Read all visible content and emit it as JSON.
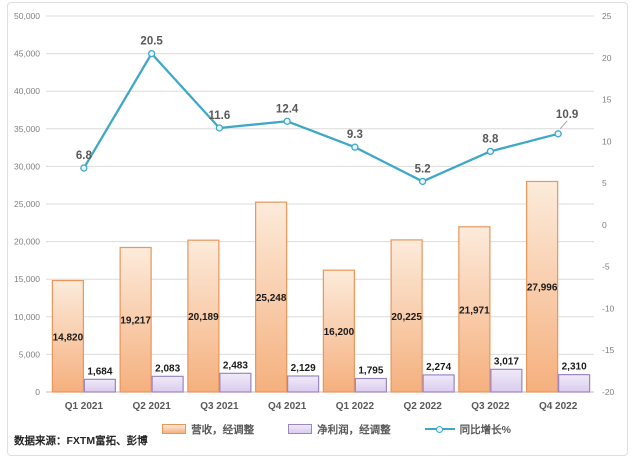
{
  "chart_data": {
    "type": "combo",
    "categories": [
      "Q1 2021",
      "Q2 2021",
      "Q3 2021",
      "Q4 2021",
      "Q1 2022",
      "Q2 2022",
      "Q3 2022",
      "Q4 2022"
    ],
    "series": [
      {
        "name": "营收，经调整",
        "type": "bar",
        "axis": "left",
        "values": [
          14820,
          19217,
          20189,
          25248,
          16200,
          20225,
          21971,
          27996
        ],
        "labels": [
          "14,820",
          "19,217",
          "20,189",
          "25,248",
          "16,200",
          "20,225",
          "21,971",
          "27,996"
        ],
        "color_top": "#FCEBDB",
        "color_bottom": "#F5B07E",
        "border": "#E9965B"
      },
      {
        "name": "净利润，经调整",
        "type": "bar",
        "axis": "left",
        "values": [
          1684,
          2083,
          2483,
          2129,
          1795,
          2274,
          3017,
          2310
        ],
        "labels": [
          "1,684",
          "2,083",
          "2,483",
          "2,129",
          "1,795",
          "2,274",
          "3,017",
          "2,310"
        ],
        "color_top": "#F0EAF8",
        "color_bottom": "#DACCEE",
        "border": "#9B85C3"
      },
      {
        "name": "同比增长%",
        "type": "line",
        "axis": "right",
        "values": [
          6.8,
          20.5,
          11.6,
          12.4,
          9.3,
          5.2,
          8.8,
          10.9
        ],
        "labels": [
          "6.8",
          "20.5",
          "11.6",
          "12.4",
          "9.3",
          "5.2",
          "8.8",
          "10.9"
        ],
        "color": "#3FA8C8",
        "marker_fill": "#EAF6FB"
      }
    ],
    "left_axis": {
      "min": 0,
      "max": 50000,
      "step": 5000,
      "ticks": [
        "0",
        "5,000",
        "10,000",
        "15,000",
        "20,000",
        "25,000",
        "30,000",
        "35,000",
        "40,000",
        "45,000",
        "50,000"
      ]
    },
    "right_axis": {
      "min": -20,
      "max": 25,
      "step": 5,
      "ticks": [
        "-20",
        "-15",
        "-10",
        "-5",
        "0",
        "5",
        "10",
        "15",
        "20",
        "25"
      ]
    },
    "grid": true,
    "legend_position": "bottom",
    "style": {
      "grid_color": "#DCDCDC",
      "axis_line_color": "#BFBFBF",
      "tick_color": "#7F7F7F",
      "category_color": "#595959",
      "bar_label_color": "#1A1A1A",
      "line_label_color": "#595959",
      "leader_line_color": "#A6A6A6",
      "frame_border": "#DFDFDF"
    }
  },
  "source_note": "数据来源：FXTM富拓、彭博"
}
